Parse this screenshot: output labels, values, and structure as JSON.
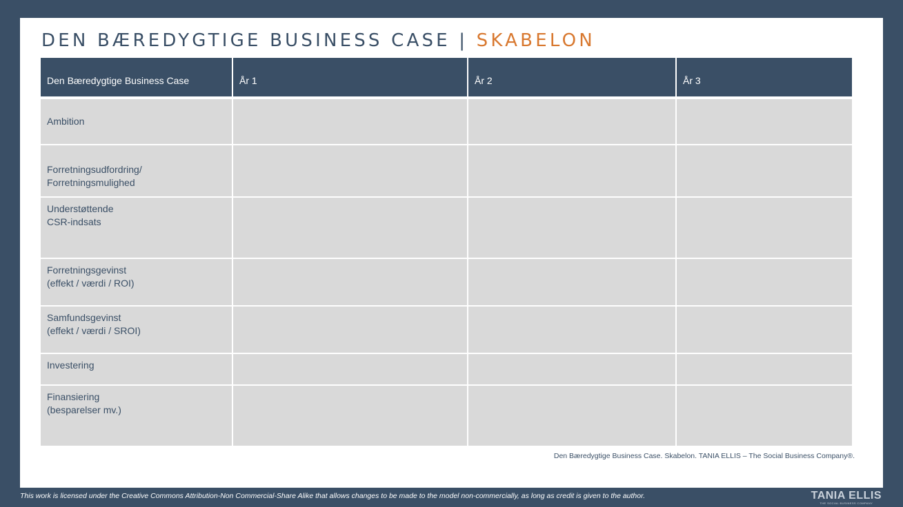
{
  "title": {
    "main": "DEN BÆREDYGTIGE BUSINESS CASE | ",
    "accent": "SKABELON"
  },
  "table": {
    "headers": [
      "Den Bæredygtige Business Case",
      "År 1",
      "År 2",
      "År 3"
    ],
    "rows": [
      {
        "lines": [
          "Ambition"
        ]
      },
      {
        "lines": [
          "Forretningsudfordring/",
          "Forretningsmulighed"
        ]
      },
      {
        "lines": [
          "Understøttende",
          "CSR-indsats"
        ]
      },
      {
        "lines": [
          "Forretningsgevinst",
          "(effekt / værdi / ROI)"
        ]
      },
      {
        "lines": [
          "Samfundsgevinst",
          "(effekt / værdi / SROI)"
        ]
      },
      {
        "lines": [
          "Investering"
        ]
      },
      {
        "lines": [
          "Finansiering",
          "(besparelser mv.)"
        ]
      }
    ]
  },
  "caption": "Den Bæredygtige Business Case. Skabelon. TANIA ELLIS – The Social Business Company®.",
  "license": "This work is licensed under the Creative Commons Attribution-Non Commercial-Share Alike that allows changes to be made to the model non-commercially, as long as credit is given to the author.",
  "logo": {
    "main": "TANIA ELLIS",
    "sub": "THE SOCIAL BUSINESS COMPANY"
  },
  "colors": {
    "navy": "#3a4f66",
    "orange": "#d8782f",
    "cell_gray": "#d9d9d9"
  }
}
